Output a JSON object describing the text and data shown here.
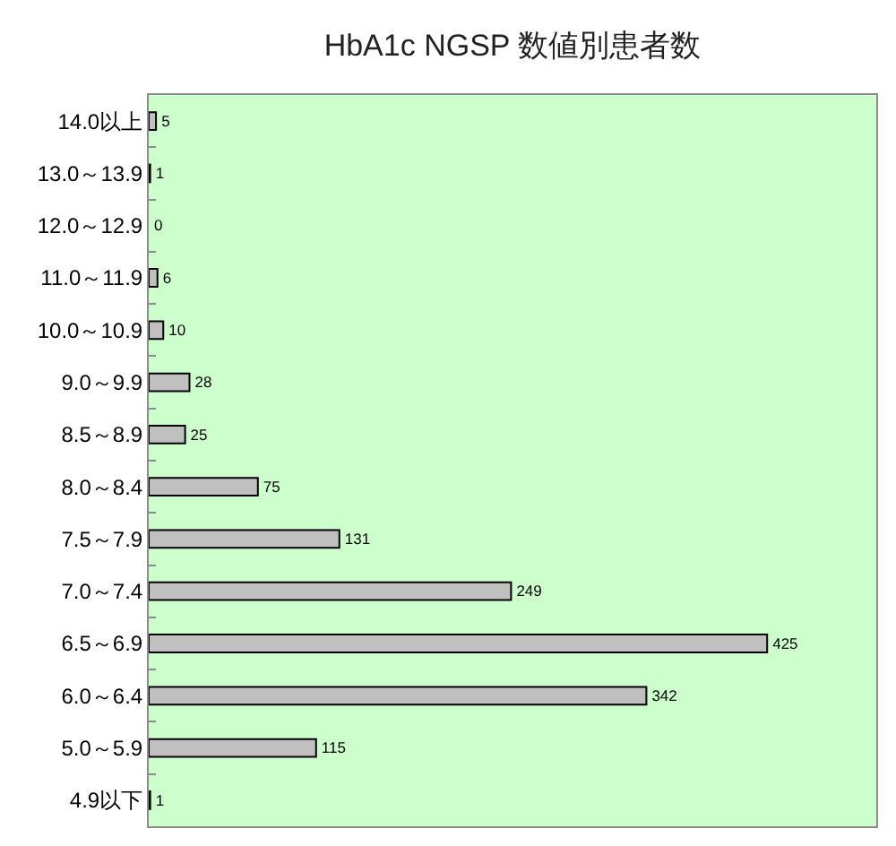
{
  "chart_data": {
    "type": "bar",
    "title": "HbA1c NGSP 数値別患者数",
    "orientation": "horizontal",
    "categories": [
      "14.0以上",
      "13.0～13.9",
      "12.0～12.9",
      "11.0～11.9",
      "10.0～10.9",
      "9.0～9.9",
      "8.5～8.9",
      "8.0～8.4",
      "7.5～7.9",
      "7.0～7.4",
      "6.5～6.9",
      "6.0～6.4",
      "5.0～5.9",
      "4.9以下"
    ],
    "values": [
      5,
      1,
      0,
      6,
      10,
      28,
      25,
      75,
      131,
      249,
      425,
      342,
      115,
      1
    ],
    "color": "#c0c0c0",
    "data_labels": true,
    "xlim": [
      0,
      500
    ],
    "tick_labels": "y"
  }
}
